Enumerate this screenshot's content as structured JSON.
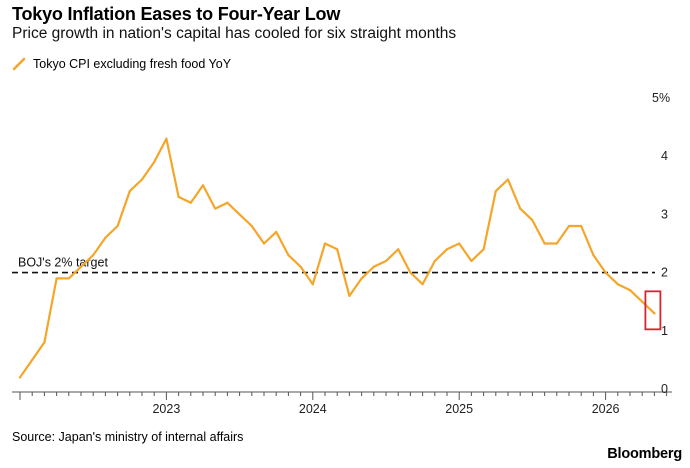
{
  "chart_data": {
    "type": "line",
    "title": "Tokyo Inflation Eases to Four-Year Low",
    "subtitle": "Price growth in nation's capital has cooled for six straight months",
    "series": [
      {
        "name": "Tokyo CPI excluding fresh food YoY",
        "color": "#f4a62a",
        "x": [
          "2022-01",
          "2022-02",
          "2022-03",
          "2022-04",
          "2022-05",
          "2022-06",
          "2022-07",
          "2022-08",
          "2022-09",
          "2022-10",
          "2022-11",
          "2022-12",
          "2023-01",
          "2023-02",
          "2023-03",
          "2023-04",
          "2023-05",
          "2023-06",
          "2023-07",
          "2023-08",
          "2023-09",
          "2023-10",
          "2023-11",
          "2023-12",
          "2024-01",
          "2024-02",
          "2024-03",
          "2024-04",
          "2024-05",
          "2024-06",
          "2024-07",
          "2024-08",
          "2024-09",
          "2024-10",
          "2024-11",
          "2024-12",
          "2025-01",
          "2025-02",
          "2025-03",
          "2025-04",
          "2025-05",
          "2025-06",
          "2025-07",
          "2025-08",
          "2025-09",
          "2025-10",
          "2025-11",
          "2025-12",
          "2026-01",
          "2026-02",
          "2026-03",
          "2026-04",
          "2026-05"
        ],
        "values": [
          0.2,
          0.5,
          0.8,
          1.9,
          1.9,
          2.1,
          2.3,
          2.6,
          2.8,
          3.4,
          3.6,
          3.9,
          4.3,
          3.3,
          3.2,
          3.5,
          3.1,
          3.2,
          3.0,
          2.8,
          2.5,
          2.7,
          2.3,
          2.1,
          1.8,
          2.5,
          2.4,
          1.6,
          1.9,
          2.1,
          2.2,
          2.4,
          2.0,
          1.8,
          2.2,
          2.4,
          2.5,
          2.2,
          2.4,
          3.4,
          3.6,
          3.1,
          2.9,
          2.5,
          2.5,
          2.8,
          2.8,
          2.3,
          2.0,
          1.8,
          1.7,
          1.5,
          1.3
        ]
      }
    ],
    "x_ticks": [
      "2023",
      "2024",
      "2025",
      "2026"
    ],
    "y_ticks": [
      "0",
      "1",
      "2",
      "3",
      "4",
      "5%"
    ],
    "ylim": [
      0,
      5
    ],
    "reference_line": {
      "value": 2,
      "label": "BOJ's 2% target"
    },
    "highlight": {
      "label": "latest reading",
      "color": "#d0262e"
    },
    "grid": false,
    "legend_position": "top-left"
  },
  "footer": {
    "source": "Source: Japan's ministry of internal affairs",
    "brand": "Bloomberg"
  }
}
